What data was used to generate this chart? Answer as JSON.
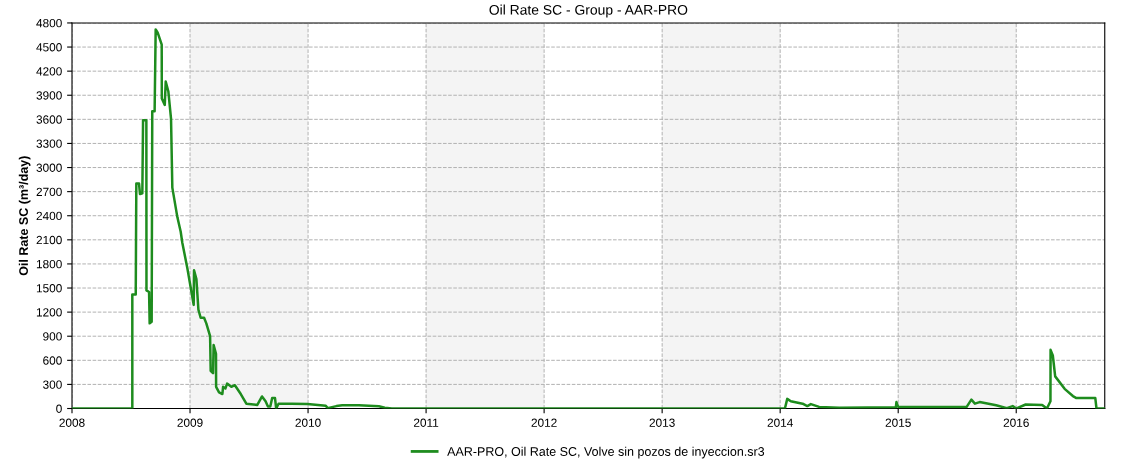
{
  "chart_data": {
    "type": "line",
    "title": "Oil Rate SC - Group - AAR-PRO",
    "ylabel": "Oil Rate SC (m³/day)",
    "xlim": [
      2008,
      2016.75
    ],
    "xticks": [
      2008,
      2009,
      2010,
      2011,
      2012,
      2013,
      2014,
      2015,
      2016
    ],
    "ylim": [
      0,
      4800
    ],
    "yticks": [
      0,
      300,
      600,
      900,
      1200,
      1500,
      1800,
      2100,
      2400,
      2700,
      3000,
      3300,
      3600,
      3900,
      4200,
      4500,
      4800
    ],
    "grid": true,
    "legend": "bottom",
    "marker": "none",
    "line_style": "solid",
    "bands": [
      {
        "axis": "x",
        "from": 2009,
        "to": 2010,
        "color": "#f4f4f4"
      },
      {
        "axis": "x",
        "from": 2011,
        "to": 2012,
        "color": "#f4f4f4"
      },
      {
        "axis": "x",
        "from": 2013,
        "to": 2014,
        "color": "#f4f4f4"
      },
      {
        "axis": "x",
        "from": 2015,
        "to": 2016,
        "color": "#f4f4f4"
      }
    ],
    "series": [
      {
        "name": "AAR-PRO, Oil Rate SC, Volve sin pozos de inyeccion.sr3",
        "color": "#1e8c1e",
        "x": [
          2008,
          2008.511,
          2008.511,
          2008.54,
          2008.545,
          2008.568,
          2008.576,
          2008.596,
          2008.602,
          2008.63,
          2008.631,
          2008.653,
          2008.658,
          2008.675,
          2008.68,
          2008.7,
          2008.709,
          2008.726,
          2008.76,
          2008.761,
          2008.786,
          2008.794,
          2008.816,
          2008.839,
          2008.85,
          2008.893,
          2008.921,
          2008.935,
          2008.977,
          2009.031,
          2009.034,
          2009.054,
          2009.071,
          2009.09,
          2009.119,
          2009.138,
          2009.17,
          2009.175,
          2009.195,
          2009.2,
          2009.22,
          2009.221,
          2009.246,
          2009.274,
          2009.28,
          2009.3,
          2009.314,
          2009.35,
          2009.38,
          2009.43,
          2009.477,
          2009.57,
          2009.61,
          2009.64,
          2009.66,
          2009.68,
          2009.696,
          2009.72,
          2009.73,
          2009.75,
          2009.86,
          2009.995,
          2010.15,
          2010.165,
          2010.24,
          2010.29,
          2010.43,
          2010.6,
          2010.65,
          2010.71,
          2013.99,
          2014.04,
          2014.06,
          2014.09,
          2014.19,
          2014.23,
          2014.26,
          2014.33,
          2014.5,
          2014.98,
          2014.985,
          2015.0,
          2015.58,
          2015.62,
          2015.65,
          2015.69,
          2015.83,
          2015.92,
          2015.97,
          2016.0,
          2016.08,
          2016.22,
          2016.26,
          2016.29,
          2016.291,
          2016.31,
          2016.33,
          2016.41,
          2016.48,
          2016.51,
          2016.67,
          2016.68,
          2016.75
        ],
        "values": [
          0,
          0,
          1420,
          1420,
          2800,
          2800,
          2670,
          2680,
          3590,
          3590,
          1470,
          1450,
          1060,
          1080,
          3700,
          3700,
          4720,
          4680,
          4530,
          3860,
          3780,
          4070,
          3950,
          3610,
          2750,
          2380,
          2200,
          2060,
          1750,
          1290,
          1720,
          1610,
          1230,
          1130,
          1130,
          1060,
          900,
          470,
          440,
          790,
          680,
          270,
          200,
          180,
          270,
          250,
          310,
          270,
          290,
          180,
          60,
          45,
          150,
          90,
          25,
          25,
          130,
          130,
          0,
          60,
          60,
          55,
          35,
          5,
          30,
          40,
          40,
          27,
          10,
          0,
          0,
          0,
          120,
          90,
          60,
          30,
          55,
          20,
          10,
          15,
          80,
          20,
          20,
          110,
          60,
          80,
          40,
          5,
          30,
          0,
          50,
          45,
          0,
          90,
          730,
          660,
          400,
          245,
          155,
          130,
          130,
          0,
          0
        ]
      }
    ]
  }
}
